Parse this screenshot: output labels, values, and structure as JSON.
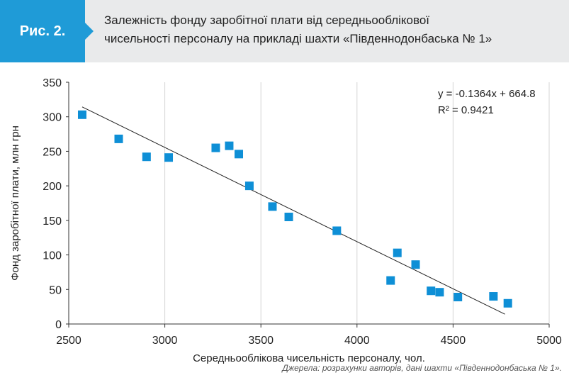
{
  "figure": {
    "label": "Рис. 2.",
    "title_line1": "Залежність фонду заробітної плати від середньооблікової",
    "title_line2": "чисельності персоналу на прикладі шахти «Південнодонбаська № 1»",
    "source": "Джерела: розрахунки авторів, дані шахти «Південнодонбаська № 1»."
  },
  "colors": {
    "accent": "#1f9bd7",
    "marker": "#0e8fd6",
    "header_bg": "#e9eaeb"
  },
  "chart_data": {
    "type": "scatter",
    "title": "",
    "xlabel": "Середньооблікова чисельність персоналу, чол.",
    "ylabel": "Фонд заробітної плати, млн грн",
    "xlim": [
      2500,
      5000
    ],
    "ylim": [
      0,
      350
    ],
    "xticks": [
      2500,
      3000,
      3500,
      4000,
      4500,
      5000
    ],
    "yticks": [
      0,
      50,
      100,
      150,
      200,
      250,
      300,
      350
    ],
    "grid": "vertical",
    "points": [
      {
        "x": 2570,
        "y": 303
      },
      {
        "x": 2760,
        "y": 268
      },
      {
        "x": 2905,
        "y": 242
      },
      {
        "x": 3020,
        "y": 241
      },
      {
        "x": 3265,
        "y": 255
      },
      {
        "x": 3335,
        "y": 258
      },
      {
        "x": 3385,
        "y": 246
      },
      {
        "x": 3440,
        "y": 200
      },
      {
        "x": 3560,
        "y": 170
      },
      {
        "x": 3645,
        "y": 155
      },
      {
        "x": 3895,
        "y": 135
      },
      {
        "x": 4175,
        "y": 63
      },
      {
        "x": 4210,
        "y": 103
      },
      {
        "x": 4305,
        "y": 86
      },
      {
        "x": 4385,
        "y": 48
      },
      {
        "x": 4430,
        "y": 46
      },
      {
        "x": 4525,
        "y": 39
      },
      {
        "x": 4710,
        "y": 40
      },
      {
        "x": 4785,
        "y": 30
      }
    ],
    "trendline": {
      "x": [
        2570,
        4770
      ],
      "slope": -0.1364,
      "intercept": 664.8
    },
    "equation": "y = -0.1364x + 664.8",
    "r_squared": "R² = 0.9421"
  }
}
